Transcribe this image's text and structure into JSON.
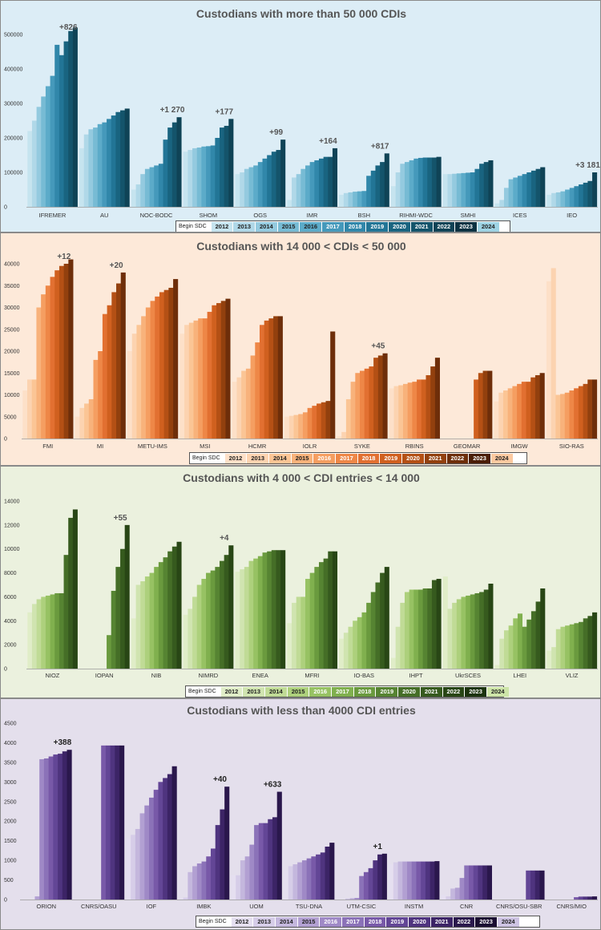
{
  "legend": {
    "title": "Begin SDC",
    "years": [
      "2012",
      "2013",
      "2014",
      "2015",
      "2016",
      "2017",
      "2018",
      "2019",
      "2020",
      "2021",
      "2022",
      "2023",
      "2024"
    ]
  },
  "panels": [
    {
      "id": "p1",
      "title": "Custodians with more than 50 000 CDIs",
      "background": "#dcedf6",
      "palette": [
        "#c6e4ef",
        "#b0d8e8",
        "#94cadf",
        "#77bbd4",
        "#5cabc9",
        "#4599bb",
        "#3187aa",
        "#227596",
        "#196480",
        "#14546b",
        "#0f4356",
        "#0c3242",
        "#9ed3e4"
      ],
      "legend_text": [
        "#222",
        "#222",
        "#222",
        "#222",
        "#222",
        "#fff",
        "#fff",
        "#fff",
        "#fff",
        "#fff",
        "#fff",
        "#fff",
        "#222"
      ]
    },
    {
      "id": "p2",
      "title": "Custodians with 14 000 < CDIs < 50 000",
      "background": "#fde9d9",
      "palette": [
        "#fde0c8",
        "#fcd3b0",
        "#fbc595",
        "#f8b27b",
        "#f59e61",
        "#ee8747",
        "#e27031",
        "#d0601f",
        "#b45015",
        "#92400e",
        "#6e2e0a",
        "#4a1d06",
        "#fbc9a0"
      ],
      "legend_text": [
        "#222",
        "#222",
        "#222",
        "#222",
        "#fff",
        "#fff",
        "#fff",
        "#fff",
        "#fff",
        "#fff",
        "#fff",
        "#fff",
        "#222"
      ]
    },
    {
      "id": "p3",
      "title": "Custodians with 4 000 < CDI entries < 14 000",
      "background": "#ebf1de",
      "palette": [
        "#e0edc8",
        "#d0e4b0",
        "#c0db96",
        "#add07c",
        "#97c263",
        "#80b04e",
        "#6a9a3e",
        "#568432",
        "#456e27",
        "#365a1e",
        "#284615",
        "#1b330d",
        "#cde4a8"
      ],
      "legend_text": [
        "#222",
        "#222",
        "#222",
        "#222",
        "#fff",
        "#fff",
        "#fff",
        "#fff",
        "#fff",
        "#fff",
        "#fff",
        "#fff",
        "#222"
      ]
    },
    {
      "id": "p4",
      "title": "Custodians with less than  4000 CDI entries",
      "background": "#e4dfec",
      "palette": [
        "#e5dff0",
        "#d6cde8",
        "#c4b7dd",
        "#b2a0d2",
        "#9f89c6",
        "#8b72b8",
        "#7859a8",
        "#634696",
        "#4f347f",
        "#3c2466",
        "#2a174c",
        "#1a0d31",
        "#cdc3e2"
      ],
      "legend_text": [
        "#222",
        "#222",
        "#222",
        "#222",
        "#fff",
        "#fff",
        "#fff",
        "#fff",
        "#fff",
        "#fff",
        "#fff",
        "#fff",
        "#222"
      ]
    }
  ],
  "chart_data": [
    {
      "type": "bar",
      "title": "Custodians with more than 50 000 CDIs",
      "ylim": [
        0,
        500000
      ],
      "yticks": [
        0,
        100000,
        200000,
        300000,
        400000,
        500000
      ],
      "categories": [
        "IFREMER",
        "AU",
        "NOC-BODC",
        "SHOM",
        "OGS",
        "IMR",
        "BSH",
        "RIHMI-WDC",
        "SMHI",
        "ICES",
        "IEO"
      ],
      "values": [
        [
          220000,
          250000,
          290000,
          320000,
          350000,
          380000,
          470000,
          440000,
          480000,
          510000,
          520000
        ],
        [
          170000,
          210000,
          225000,
          230000,
          240000,
          245000,
          255000,
          265000,
          275000,
          280000,
          285000
        ],
        [
          50000,
          65000,
          95000,
          110000,
          115000,
          120000,
          125000,
          195000,
          230000,
          245000,
          260000
        ],
        [
          160000,
          165000,
          170000,
          172000,
          175000,
          176000,
          178000,
          200000,
          230000,
          235000,
          255000
        ],
        [
          95000,
          100000,
          110000,
          115000,
          120000,
          130000,
          140000,
          150000,
          160000,
          165000,
          195000
        ],
        [
          20000,
          85000,
          95000,
          110000,
          120000,
          130000,
          135000,
          140000,
          145000,
          145000,
          170000
        ],
        [
          35000,
          40000,
          42000,
          44000,
          45000,
          46000,
          90000,
          105000,
          120000,
          130000,
          155000
        ],
        [
          60000,
          100000,
          125000,
          130000,
          135000,
          140000,
          142000,
          143000,
          143000,
          143000,
          145000
        ],
        [
          95000,
          95000,
          96000,
          97000,
          98000,
          99000,
          100000,
          110000,
          125000,
          130000,
          135000
        ],
        [
          10000,
          20000,
          55000,
          80000,
          85000,
          90000,
          95000,
          100000,
          105000,
          110000,
          115000
        ],
        [
          35000,
          40000,
          42000,
          45000,
          50000,
          55000,
          60000,
          65000,
          70000,
          75000,
          100000
        ]
      ],
      "annotations": [
        {
          "category": "IFREMER",
          "text": "+826"
        },
        {
          "category": "NOC-BODC",
          "text": "+1 270"
        },
        {
          "category": "SHOM",
          "text": "+177"
        },
        {
          "category": "OGS",
          "text": "+99"
        },
        {
          "category": "IMR",
          "text": "+164"
        },
        {
          "category": "BSH",
          "text": "+817"
        },
        {
          "category": "IEO",
          "text": "+3 181"
        }
      ]
    },
    {
      "type": "bar",
      "title": "Custodians with 14 000 < CDIs < 50 000",
      "ylim": [
        0,
        40000
      ],
      "yticks": [
        0,
        5000,
        10000,
        15000,
        20000,
        25000,
        30000,
        35000,
        40000
      ],
      "categories": [
        "FMI",
        "MI",
        "METU-IMS",
        "MSI",
        "HCMR",
        "IOLR",
        "SYKE",
        "RBINS",
        "GEOMAR",
        "IMGW",
        "SIO-RAS"
      ],
      "values": [
        [
          11000,
          13500,
          13500,
          30000,
          33000,
          35000,
          37000,
          38500,
          39500,
          40000,
          41000
        ],
        [
          5000,
          7000,
          8000,
          9000,
          18000,
          20000,
          28500,
          30500,
          33500,
          35500,
          38000
        ],
        [
          20000,
          24000,
          26000,
          28000,
          30000,
          31500,
          32500,
          33500,
          34000,
          34500,
          36500
        ],
        [
          24000,
          26000,
          26500,
          27000,
          27500,
          27500,
          29000,
          30500,
          31000,
          31500,
          32000
        ],
        [
          13000,
          14000,
          15500,
          16000,
          19000,
          22000,
          26000,
          27000,
          27500,
          28000,
          28000
        ],
        [
          5000,
          5200,
          5400,
          5600,
          6000,
          7000,
          7500,
          8000,
          8300,
          8600,
          24500
        ],
        [
          500,
          1500,
          9000,
          13000,
          15000,
          15500,
          16000,
          16500,
          18500,
          19000,
          19500
        ],
        [
          11500,
          12000,
          12200,
          12500,
          12800,
          13000,
          13500,
          13500,
          14500,
          16500,
          18500
        ],
        [
          0,
          0,
          0,
          0,
          0,
          0,
          0,
          13500,
          15000,
          15500,
          15500
        ],
        [
          8500,
          10500,
          11000,
          11500,
          12000,
          12500,
          13000,
          13000,
          14000,
          14500,
          15000
        ],
        [
          36000,
          39000,
          10000,
          10200,
          10500,
          11000,
          11500,
          12000,
          12500,
          13500,
          13500
        ]
      ],
      "annotations": [
        {
          "category": "FMI",
          "text": "+12"
        },
        {
          "category": "MI",
          "text": "+20"
        },
        {
          "category": "SYKE",
          "text": "+45"
        }
      ]
    },
    {
      "type": "bar",
      "title": "Custodians with 4 000 < CDI entries < 14 000",
      "ylim": [
        0,
        14000
      ],
      "yticks": [
        0,
        2000,
        4000,
        6000,
        8000,
        10000,
        12000,
        14000
      ],
      "categories": [
        "NIOZ",
        "IOPAN",
        "NIB",
        "NIMRD",
        "ENEA",
        "MFRI",
        "IO-BAS",
        "IHPT",
        "UkrSCES",
        "LHEI",
        "VLIZ"
      ],
      "values": [
        [
          4700,
          5400,
          5800,
          6000,
          6100,
          6200,
          6300,
          6300,
          9500,
          12600,
          13300
        ],
        [
          0,
          0,
          0,
          0,
          0,
          0,
          2800,
          6500,
          8500,
          10000,
          12000
        ],
        [
          4200,
          7000,
          7300,
          7700,
          8000,
          8500,
          8900,
          9300,
          9800,
          10200,
          10600
        ],
        [
          4500,
          5000,
          6000,
          7000,
          7500,
          8000,
          8200,
          8500,
          9000,
          9500,
          10300
        ],
        [
          8100,
          8300,
          8500,
          9000,
          9200,
          9400,
          9700,
          9800,
          9900,
          9900,
          9900
        ],
        [
          3800,
          5500,
          6000,
          6000,
          7500,
          8000,
          8500,
          8900,
          9200,
          9800,
          9800
        ],
        [
          2500,
          3000,
          3500,
          4000,
          4300,
          4700,
          5500,
          6400,
          7200,
          8000,
          8500
        ],
        [
          900,
          3500,
          5500,
          6400,
          6600,
          6600,
          6600,
          6700,
          6700,
          7400,
          7500
        ],
        [
          7700,
          5000,
          5500,
          5800,
          6000,
          6100,
          6200,
          6300,
          6400,
          6600,
          7100
        ],
        [
          300,
          2500,
          3200,
          3600,
          4200,
          4600,
          3500,
          4100,
          4800,
          5600,
          6700
        ],
        [
          1500,
          1800,
          3300,
          3500,
          3600,
          3700,
          3800,
          3900,
          4200,
          4400,
          4700
        ]
      ],
      "annotations": [
        {
          "category": "IOPAN",
          "text": "+55"
        },
        {
          "category": "NIMRD",
          "text": "+4"
        }
      ]
    },
    {
      "type": "bar",
      "title": "Custodians with less than  4000 CDI entries",
      "ylim": [
        0,
        4500
      ],
      "yticks": [
        0,
        500,
        1000,
        1500,
        2000,
        2500,
        3000,
        3500,
        4000,
        4500
      ],
      "categories": [
        "ORION",
        "CNRS/OASU",
        "IOF",
        "IMBK",
        "UOM",
        "TSU-DNA",
        "UTM-CSIC",
        "INSTM",
        "CNR",
        "CNRS/OSU-SBR",
        "CNRS/MIO"
      ],
      "values": [
        [
          0,
          0,
          0,
          80,
          3580,
          3600,
          3650,
          3700,
          3720,
          3780,
          3820
        ],
        [
          0,
          0,
          0,
          0,
          0,
          0,
          3930,
          3930,
          3930,
          3930,
          3930
        ],
        [
          1550,
          1650,
          1800,
          2200,
          2400,
          2600,
          2800,
          3000,
          3100,
          3200,
          3400
        ],
        [
          30,
          50,
          700,
          850,
          920,
          970,
          1100,
          1300,
          1900,
          2300,
          2880
        ],
        [
          620,
          620,
          1000,
          1100,
          1400,
          1900,
          1950,
          1950,
          2050,
          2100,
          2750
        ],
        [
          750,
          850,
          900,
          950,
          1000,
          1050,
          1100,
          1150,
          1200,
          1350,
          1450
        ],
        [
          0,
          0,
          20,
          30,
          40,
          600,
          700,
          800,
          1000,
          1150,
          1170
        ],
        [
          900,
          950,
          970,
          970,
          970,
          970,
          970,
          970,
          970,
          970,
          980
        ],
        [
          120,
          80,
          280,
          300,
          550,
          870,
          870,
          870,
          870,
          870,
          870
        ],
        [
          0,
          0,
          0,
          0,
          0,
          0,
          0,
          740,
          740,
          740,
          740
        ],
        [
          0,
          0,
          0,
          0,
          0,
          0,
          60,
          75,
          75,
          75,
          80
        ]
      ],
      "annotations": [
        {
          "category": "ORION",
          "text": "+388"
        },
        {
          "category": "IMBK",
          "text": "+40"
        },
        {
          "category": "UOM",
          "text": "+633"
        },
        {
          "category": "UTM-CSIC",
          "text": "+1"
        }
      ]
    }
  ]
}
